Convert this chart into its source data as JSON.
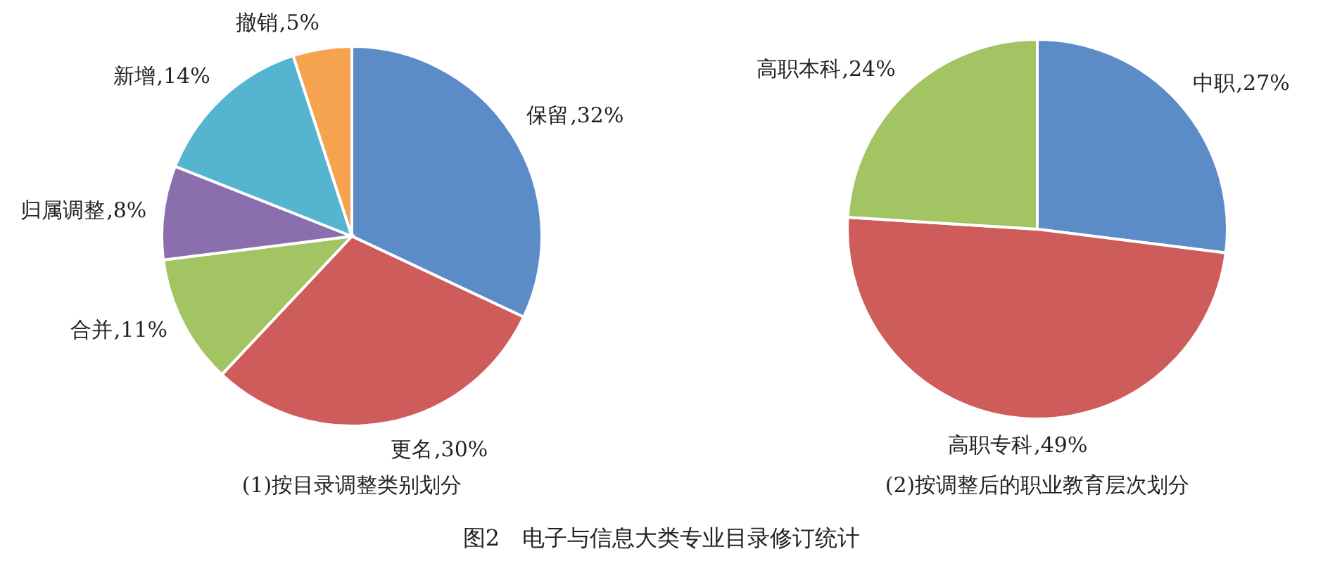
{
  "chart_data": [
    {
      "type": "pie",
      "title": "(1)按目录调整类别划分",
      "categories": [
        "保留",
        "更名",
        "合并",
        "归属调整",
        "新增",
        "撤销"
      ],
      "values": [
        32,
        30,
        11,
        8,
        14,
        5
      ],
      "colors": [
        "#5b8cc8",
        "#cd5c5a",
        "#a2c462",
        "#8a6eae",
        "#55b4cf",
        "#f6a34f"
      ],
      "value_labels": [
        ",32%",
        ",30%",
        ",11%",
        ",8%",
        ",14%",
        ",5%"
      ]
    },
    {
      "type": "pie",
      "title": "(2)按调整后的职业教育层次划分",
      "categories": [
        "中职",
        "高职专科",
        "高职本科"
      ],
      "values": [
        27,
        49,
        24
      ],
      "colors": [
        "#5b8cc8",
        "#cd5c5a",
        "#a2c462"
      ],
      "value_labels": [
        ",27%",
        ",49%",
        ",24%"
      ],
      "annotations": [
        "图2　电子与信息大类专业目录修订统计"
      ]
    }
  ]
}
